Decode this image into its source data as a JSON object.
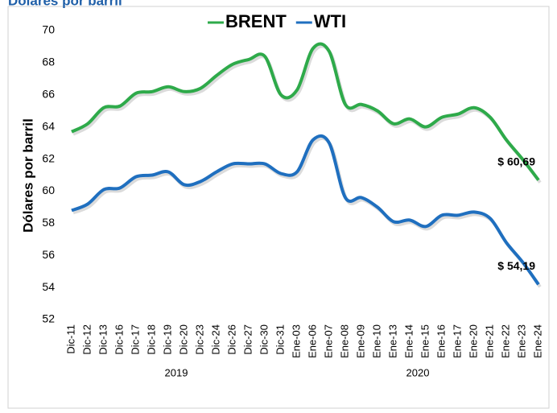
{
  "chart_data": {
    "type": "line",
    "title": "Dólares por barril",
    "y_label": "Dólares por barril",
    "categories": [
      "Dic-11",
      "Dic-12",
      "Dic-13",
      "Dic-16",
      "Dic-17",
      "Dic-18",
      "Dic-19",
      "Dic-20",
      "Dic-23",
      "Dic-24",
      "Dic-26",
      "Dic-27",
      "Dic-30",
      "Dic-31",
      "Ene-03",
      "Ene-06",
      "Ene-07",
      "Ene-08",
      "Ene-09",
      "Ene-10",
      "Ene-13",
      "Ene-14",
      "Ene-15",
      "Ene-16",
      "Ene-17",
      "Ene-20",
      "Ene-21",
      "Ene-22",
      "Ene-23",
      "Ene-24"
    ],
    "groups": [
      {
        "label": "2019",
        "count": 14
      },
      {
        "label": "2020",
        "count": 16
      }
    ],
    "series": [
      {
        "name": "BRENT",
        "color": "#2eaa4a",
        "values": [
          63.7,
          64.2,
          65.2,
          65.3,
          66.1,
          66.2,
          66.5,
          66.2,
          66.4,
          67.2,
          67.9,
          68.2,
          68.4,
          66.0,
          66.3,
          68.9,
          68.7,
          65.4,
          65.4,
          65.0,
          64.2,
          64.5,
          64.0,
          64.6,
          64.8,
          65.2,
          64.6,
          63.2,
          62.0,
          60.69
        ],
        "value_labels": [
          null,
          null,
          null,
          null,
          null,
          null,
          null,
          null,
          null,
          null,
          null,
          null,
          null,
          null,
          null,
          null,
          null,
          null,
          null,
          null,
          null,
          null,
          null,
          null,
          null,
          null,
          null,
          null,
          null,
          "$ 60,69"
        ]
      },
      {
        "name": "WTI",
        "color": "#1f6fbf",
        "values": [
          58.8,
          59.2,
          60.1,
          60.2,
          60.9,
          61.0,
          61.2,
          60.4,
          60.6,
          61.2,
          61.7,
          61.7,
          61.7,
          61.1,
          61.2,
          63.2,
          63.0,
          59.6,
          59.6,
          59.0,
          58.1,
          58.2,
          57.8,
          58.5,
          58.5,
          58.7,
          58.3,
          56.8,
          55.6,
          54.19
        ],
        "value_labels": [
          null,
          null,
          null,
          null,
          null,
          null,
          null,
          null,
          null,
          null,
          null,
          null,
          null,
          null,
          null,
          null,
          null,
          null,
          null,
          null,
          null,
          null,
          null,
          null,
          null,
          null,
          null,
          null,
          null,
          "$ 54,19"
        ]
      }
    ],
    "ylim": [
      52,
      70
    ],
    "yticks": [
      52,
      54,
      56,
      58,
      60,
      62,
      64,
      66,
      68,
      70
    ],
    "legend": "top",
    "grid": false
  }
}
